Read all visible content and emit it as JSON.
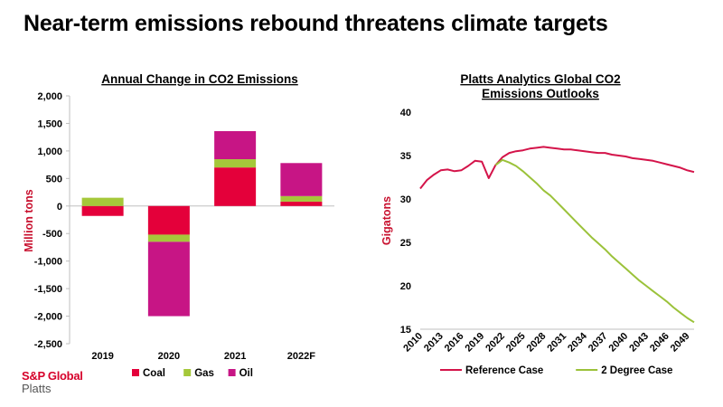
{
  "page": {
    "title": "Near-term emissions rebound threatens climate targets"
  },
  "logo": {
    "line1": "S&P Global",
    "line2": "Platts"
  },
  "colors": {
    "coal": "#e4003a",
    "gas": "#a5c83a",
    "oil": "#c71585",
    "reference": "#d4144a",
    "two_degree": "#9bc23a"
  },
  "chart_data": [
    {
      "type": "bar",
      "stacked": true,
      "title": "Annual Change in CO2 Emissions",
      "ylabel": "Million tons",
      "xlabel": "",
      "ylim": [
        -2500,
        2000
      ],
      "yticks": [
        2000,
        1500,
        1000,
        500,
        0,
        -500,
        -1000,
        -1500,
        -2000,
        -2500
      ],
      "ytick_labels": [
        "2,000",
        "1,500",
        "1,000",
        "500",
        "0",
        "-500",
        "-1,000",
        "-1,500",
        "-2,000",
        "-2,500"
      ],
      "categories": [
        "2019",
        "2020",
        "2021",
        "2022F"
      ],
      "series": [
        {
          "name": "Coal",
          "values": [
            -180,
            -520,
            700,
            80
          ]
        },
        {
          "name": "Gas",
          "values": [
            150,
            -130,
            150,
            100
          ]
        },
        {
          "name": "Oil",
          "values": [
            0,
            -1350,
            510,
            600
          ]
        }
      ],
      "legend_position": "bottom"
    },
    {
      "type": "line",
      "title": "Platts Analytics Global CO2 Emissions Outlooks",
      "ylabel": "Gigatons",
      "xlabel": "",
      "ylim": [
        15,
        40
      ],
      "yticks": [
        15,
        20,
        25,
        30,
        35,
        40
      ],
      "ytick_labels": [
        "15",
        "20",
        "25",
        "30",
        "35",
        "40"
      ],
      "xlim": [
        2010,
        2050
      ],
      "xticks": [
        2010,
        2013,
        2016,
        2019,
        2022,
        2025,
        2028,
        2031,
        2034,
        2037,
        2040,
        2043,
        2046,
        2049
      ],
      "xtick_labels": [
        "2010",
        "2013",
        "2016",
        "2019",
        "2022",
        "2025",
        "2028",
        "2031",
        "2034",
        "2037",
        "2040",
        "2043",
        "2046",
        "2049"
      ],
      "series": [
        {
          "name": "Reference Case",
          "x": [
            2010,
            2011,
            2012,
            2013,
            2014,
            2015,
            2016,
            2017,
            2018,
            2019,
            2020,
            2021,
            2022,
            2023,
            2024,
            2025,
            2026,
            2027,
            2028,
            2029,
            2030,
            2031,
            2032,
            2033,
            2034,
            2035,
            2036,
            2037,
            2038,
            2039,
            2040,
            2041,
            2042,
            2043,
            2044,
            2045,
            2046,
            2047,
            2048,
            2049,
            2050
          ],
          "values": [
            31.2,
            32.2,
            32.8,
            33.3,
            33.4,
            33.2,
            33.3,
            33.8,
            34.4,
            34.3,
            32.4,
            33.9,
            34.8,
            35.3,
            35.5,
            35.6,
            35.8,
            35.9,
            36.0,
            35.9,
            35.8,
            35.7,
            35.7,
            35.6,
            35.5,
            35.4,
            35.3,
            35.3,
            35.1,
            35.0,
            34.9,
            34.7,
            34.6,
            34.5,
            34.4,
            34.2,
            34.0,
            33.8,
            33.6,
            33.3,
            33.1
          ]
        },
        {
          "name": "2 Degree Case",
          "x": [
            2021,
            2022,
            2023,
            2024,
            2025,
            2026,
            2027,
            2028,
            2029,
            2030,
            2031,
            2032,
            2033,
            2034,
            2035,
            2036,
            2037,
            2038,
            2039,
            2040,
            2041,
            2042,
            2043,
            2044,
            2045,
            2046,
            2047,
            2048,
            2049,
            2050
          ],
          "values": [
            33.9,
            34.5,
            34.2,
            33.8,
            33.2,
            32.5,
            31.8,
            31.0,
            30.4,
            29.6,
            28.8,
            28.0,
            27.2,
            26.4,
            25.6,
            24.9,
            24.2,
            23.4,
            22.7,
            22.0,
            21.3,
            20.6,
            20.0,
            19.4,
            18.8,
            18.2,
            17.5,
            16.9,
            16.3,
            15.8
          ]
        }
      ],
      "legend_position": "bottom"
    }
  ]
}
